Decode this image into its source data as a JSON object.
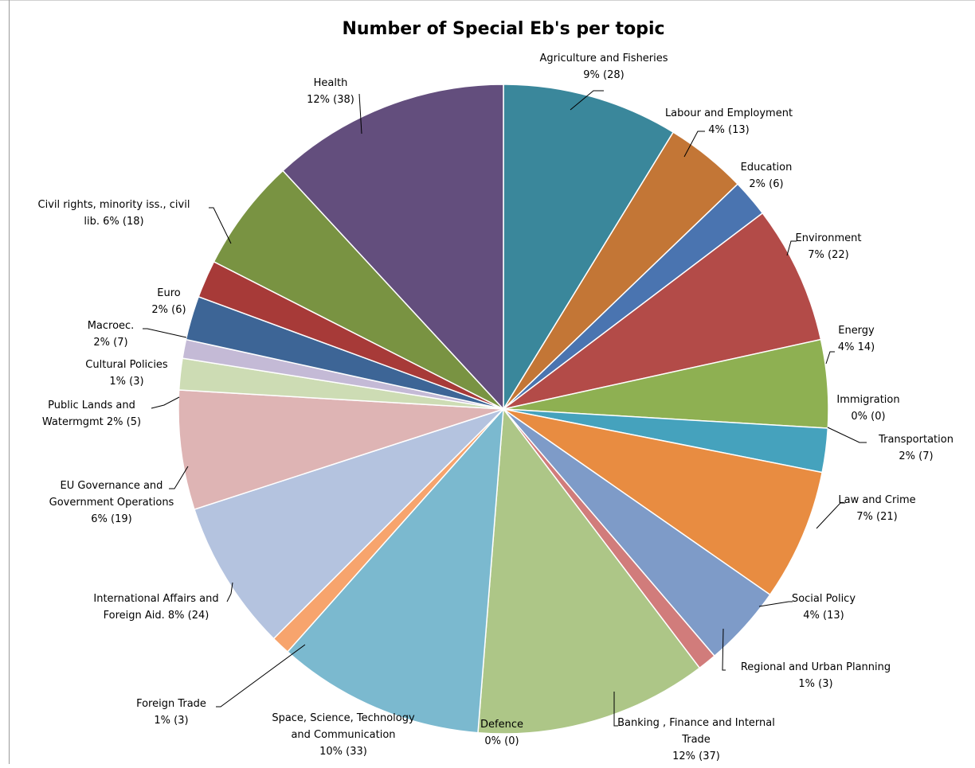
{
  "chart_data": {
    "type": "pie",
    "title": "Number of Special Eb's per topic",
    "start_angle_deg": 0,
    "direction": "clockwise",
    "label_color": "#000000",
    "slice_border_color": "#ffffff",
    "slices": [
      {
        "label": [
          "Agriculture and Fisheries",
          "9% (28)"
        ],
        "value": 28,
        "color": "#3a879b"
      },
      {
        "label": [
          "Labour and Employment",
          "4% (13)"
        ],
        "value": 13,
        "color": "#c37636"
      },
      {
        "label": [
          "Education",
          "2% (6)"
        ],
        "value": 6,
        "color": "#4a74b0"
      },
      {
        "label": [
          "Environment",
          "7% (22)"
        ],
        "value": 22,
        "color": "#b34b48"
      },
      {
        "label": [
          "Energy",
          "4% 14)"
        ],
        "value": 14,
        "color": "#8eb052"
      },
      {
        "label": [
          "Immigration",
          "0% (0)"
        ],
        "value": 0,
        "color": "#6a4f8a"
      },
      {
        "label": [
          "Transportation",
          "2% (7)"
        ],
        "value": 7,
        "color": "#45a2bd"
      },
      {
        "label": [
          "Law and Crime",
          "7% (21)"
        ],
        "value": 21,
        "color": "#e88c41"
      },
      {
        "label": [
          "Social Policy",
          "4% (13)"
        ],
        "value": 13,
        "color": "#7e9bc8"
      },
      {
        "label": [
          "Regional and Urban Planning",
          "1% (3)"
        ],
        "value": 3,
        "color": "#d17c7b"
      },
      {
        "label": [
          "Banking , Finance and Internal",
          "Trade",
          "12% (37)"
        ],
        "value": 37,
        "color": "#adc687"
      },
      {
        "label": [
          "Defence",
          "0% (0)"
        ],
        "value": 0,
        "color": "#9b88b5"
      },
      {
        "label": [
          "Space, Science, Technology",
          "and Communication",
          "10% (33)"
        ],
        "value": 33,
        "color": "#7bb9cf"
      },
      {
        "label": [
          "Foreign Trade",
          "1% (3)"
        ],
        "value": 3,
        "color": "#f7a46d"
      },
      {
        "label": [
          "International Affairs and",
          "Foreign Aid.   8% (24)"
        ],
        "value": 24,
        "color": "#b4c3df"
      },
      {
        "label": [
          "EU Governance and",
          "Government  Operations",
          "6% (19)"
        ],
        "value": 19,
        "color": "#deb4b4"
      },
      {
        "label": [
          "Public Lands and",
          "Watermgmt    2% (5)"
        ],
        "value": 5,
        "color": "#cddcb4"
      },
      {
        "label": [
          "Cultural Policies",
          "1% (3)"
        ],
        "value": 3,
        "color": "#c4bad6"
      },
      {
        "label": [
          "Macroec.",
          "2% (7)"
        ],
        "value": 7,
        "color": "#3d6596"
      },
      {
        "label": [
          "Euro",
          "2% (6)"
        ],
        "value": 6,
        "color": "#a73a38"
      },
      {
        "label": [
          "Civil rights, minority iss., civil",
          "lib.  6% (18)"
        ],
        "value": 18,
        "color": "#799342"
      },
      {
        "label": [
          "Health",
          "12% (38)"
        ],
        "value": 38,
        "color": "#634e7d"
      }
    ]
  }
}
